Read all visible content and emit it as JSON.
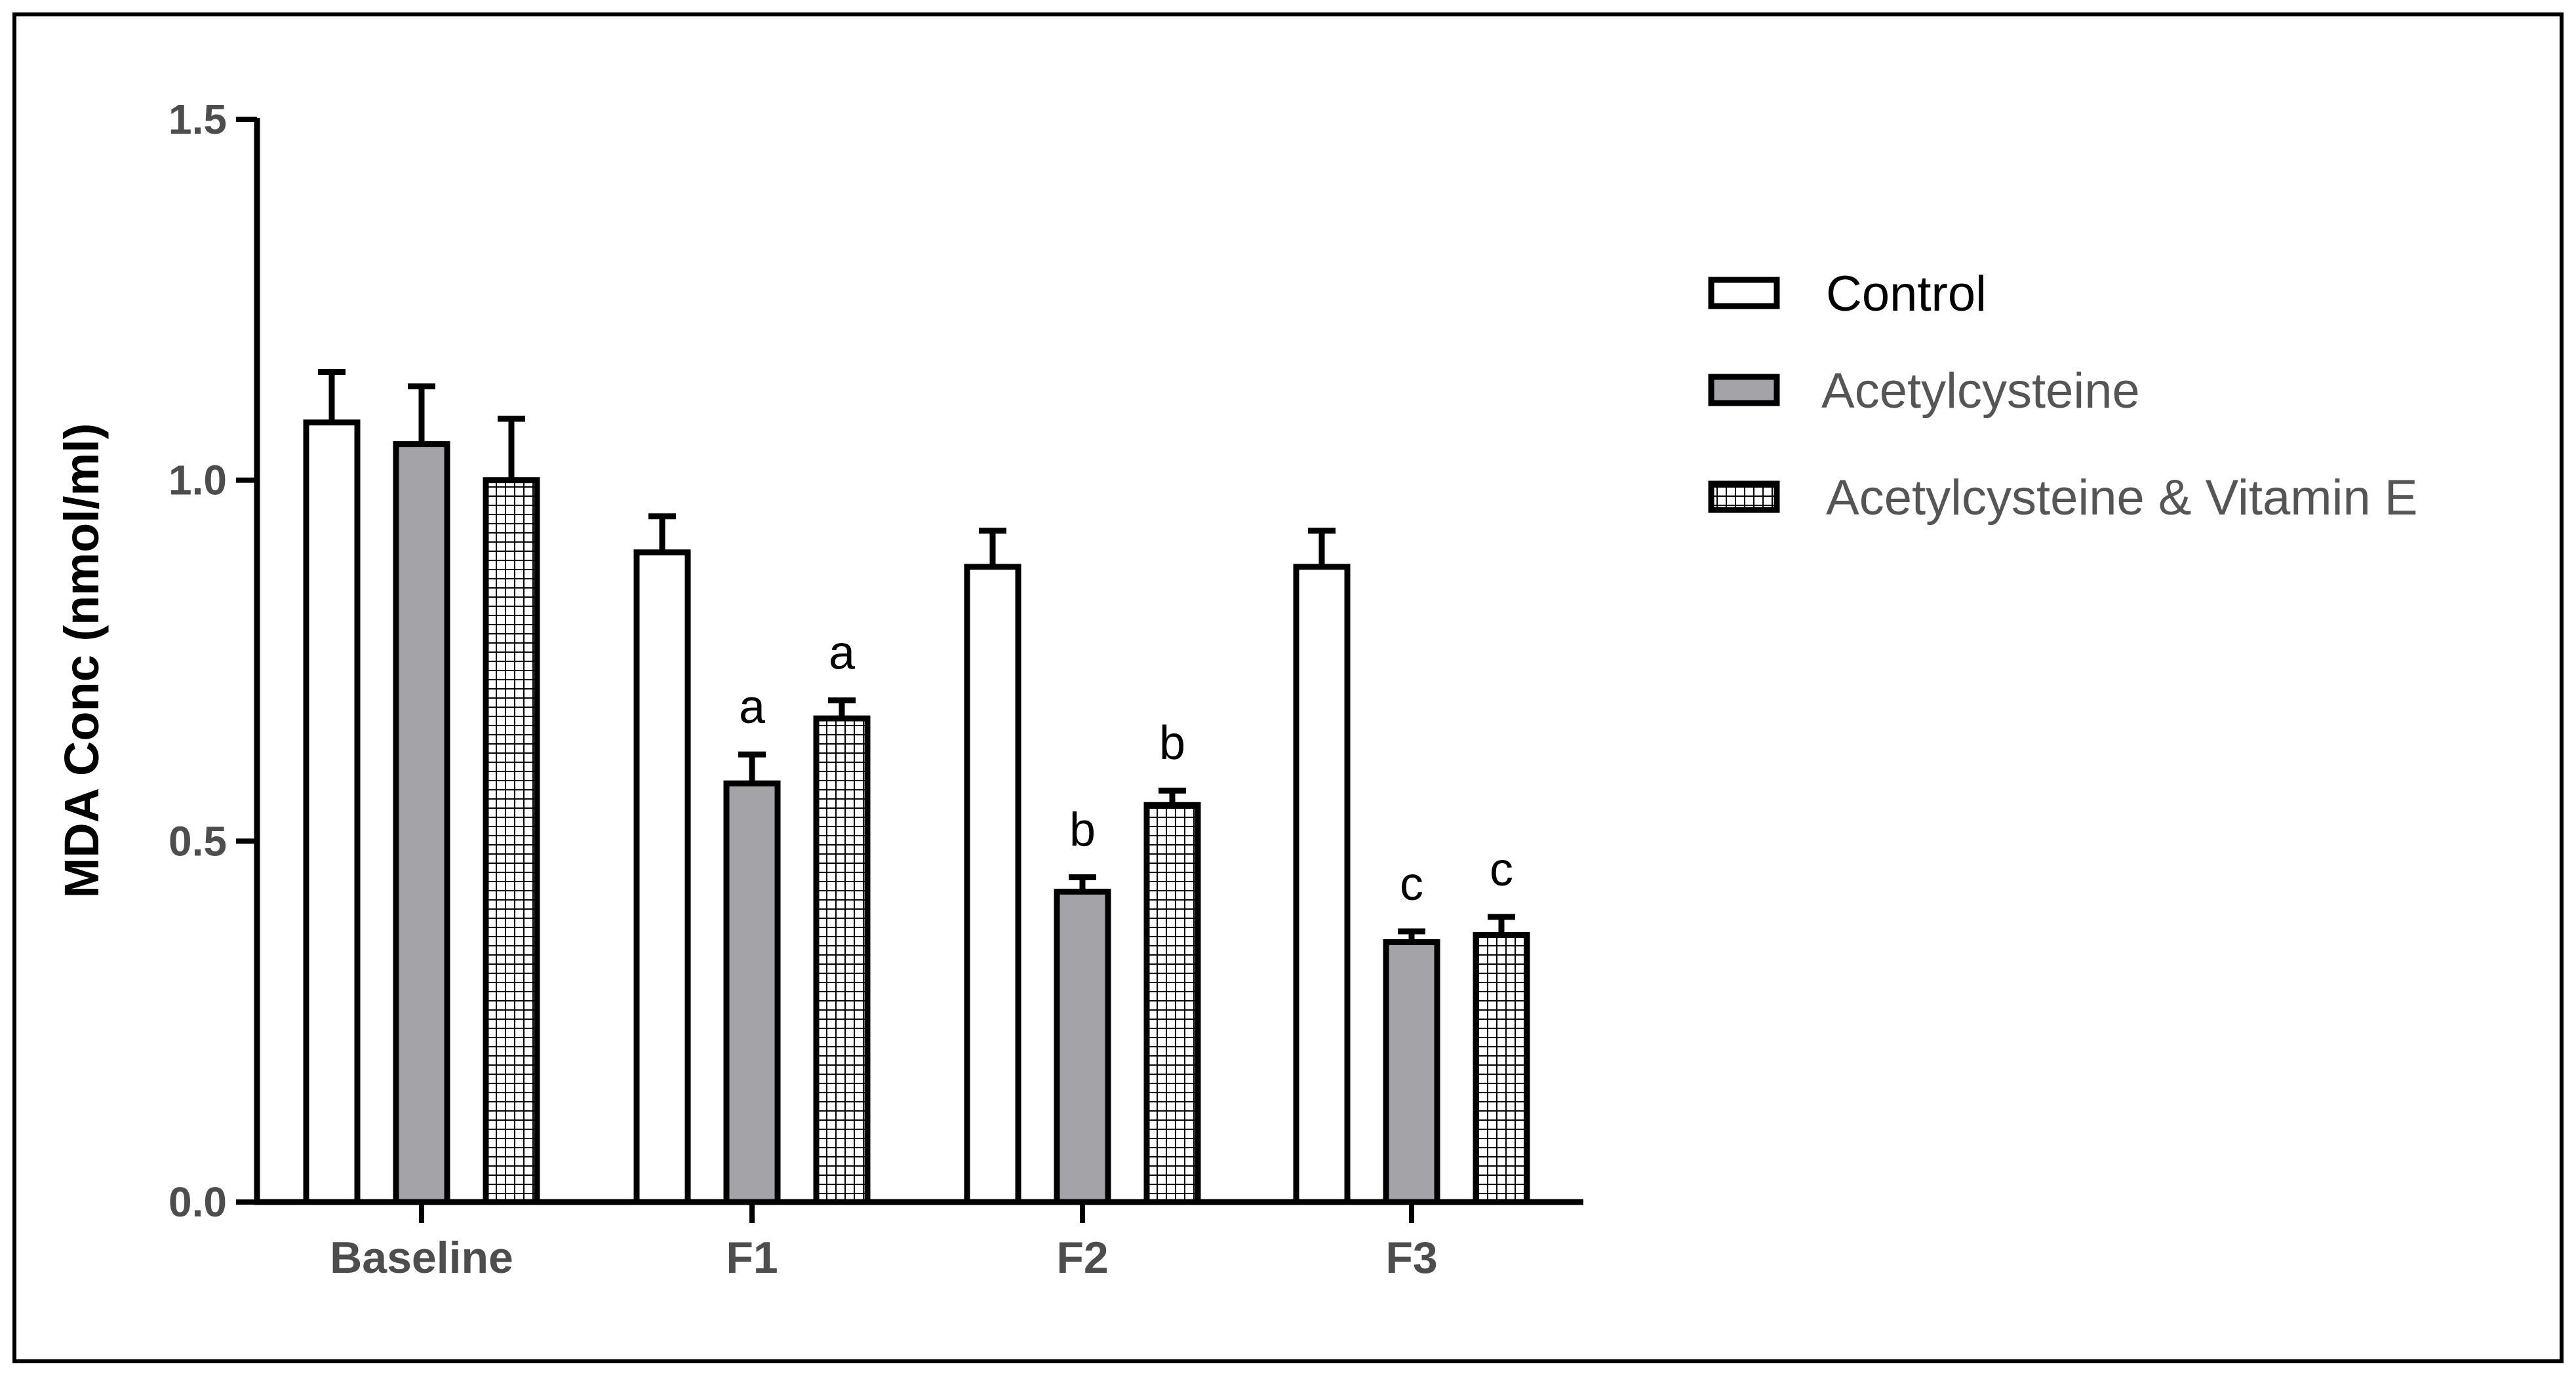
{
  "chart_data": {
    "type": "bar",
    "title": "",
    "xlabel": "",
    "ylabel": "MDA Conc (nmol/ml)",
    "ylim": [
      0,
      1.5
    ],
    "yticks": [
      "0.0",
      "0.5",
      "1.0",
      "1.5"
    ],
    "ytick_values": [
      0,
      0.5,
      1.0,
      1.5
    ],
    "categories": [
      "Baseline",
      "F1",
      "F2",
      "F3"
    ],
    "series": [
      {
        "name": "Control",
        "fill": "white",
        "values": [
          1.08,
          0.9,
          0.88,
          0.88
        ],
        "errors": [
          0.07,
          0.05,
          0.05,
          0.05
        ],
        "labels": [
          "",
          "",
          "",
          ""
        ]
      },
      {
        "name": "Acetylcysteine",
        "fill": "gray",
        "values": [
          1.05,
          0.58,
          0.43,
          0.36
        ],
        "errors": [
          0.08,
          0.04,
          0.02,
          0.015
        ],
        "labels": [
          "",
          "a",
          "b",
          "c"
        ]
      },
      {
        "name": "Acetylcysteine & Vitamin E",
        "fill": "grid",
        "values": [
          1.0,
          0.67,
          0.55,
          0.37
        ],
        "errors": [
          0.085,
          0.025,
          0.02,
          0.025
        ],
        "labels": [
          "",
          "a",
          "b",
          "c"
        ]
      }
    ],
    "legend_position": "right",
    "colors": {
      "gray": "#a3a3a8",
      "stroke": "#000000",
      "frame": "#000000",
      "text": "#4d4d4d"
    }
  }
}
